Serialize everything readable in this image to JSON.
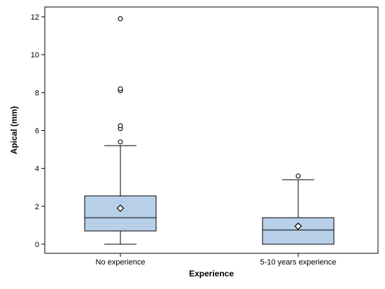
{
  "chart_data": {
    "type": "boxplot",
    "xlabel": "Experience",
    "ylabel": "Apical (mm)",
    "ylim": [
      -0.5,
      12.4
    ],
    "yticks": [
      0,
      2,
      4,
      6,
      8,
      10,
      12
    ],
    "grid": false,
    "legend": "none",
    "box_fill": "#b8cfe8",
    "line_color": "#000000",
    "categories": [
      "No experience",
      "5-10 years experience"
    ],
    "boxes": [
      {
        "category": "No experience",
        "whisker_low": 0.0,
        "q1": 0.7,
        "median": 1.4,
        "q3": 2.55,
        "whisker_high": 5.2,
        "mean": 1.9,
        "outliers": [
          5.4,
          6.1,
          6.25,
          8.1,
          8.2,
          11.9
        ]
      },
      {
        "category": "5-10 years experience",
        "whisker_low": 0.0,
        "q1": 0.0,
        "median": 0.75,
        "q3": 1.4,
        "whisker_high": 3.4,
        "mean": 0.95,
        "outliers": [
          3.6
        ]
      }
    ]
  }
}
